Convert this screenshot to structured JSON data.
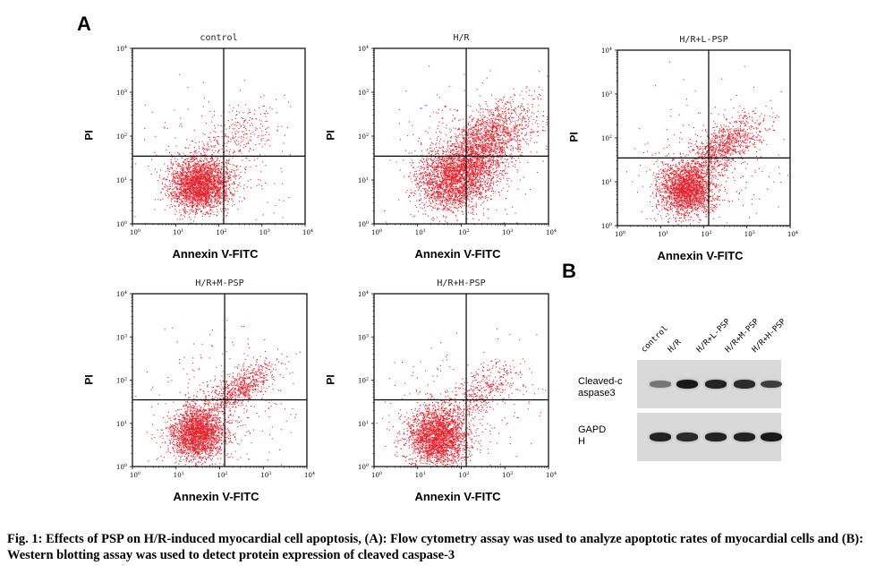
{
  "figure": {
    "panel_a_letter": "A",
    "panel_b_letter": "B",
    "caption": "Fig. 1: Effects of PSP on H/R-induced myocardial cell apoptosis, (A): Flow cytometry assay was used to analyze apoptotic rates of myocardial cells and (B): Western blotting assay was used to detect protein expression of cleaved caspase-3"
  },
  "chart_data": [
    {
      "type": "scatter",
      "title": "control",
      "xlabel": "Annexin V-FITC",
      "ylabel": "PI",
      "x_scale": "log",
      "y_scale": "log",
      "xlim": [
        1,
        10000
      ],
      "ylim": [
        1,
        10000
      ],
      "tick_labels": [
        "10",
        "10",
        "10",
        "10",
        "10"
      ],
      "tick_exponents": [
        "0",
        "1",
        "2",
        "3",
        "4"
      ],
      "quadrant_gate": {
        "x": 130,
        "y": 35
      },
      "point_color": "#e8202a",
      "populations": [
        {
          "label": "live",
          "center": [
            35,
            8
          ],
          "spread": [
            0.35,
            0.3
          ],
          "count": 2600
        },
        {
          "label": "late",
          "center": [
            250,
            90
          ],
          "spread": [
            0.3,
            0.3
          ],
          "count": 260
        },
        {
          "label": "background",
          "center": [
            100,
            30
          ],
          "spread": [
            0.9,
            0.8
          ],
          "count": 220
        }
      ]
    },
    {
      "type": "scatter",
      "title": "H/R",
      "xlabel": "Annexin V-FITC",
      "ylabel": "PI",
      "x_scale": "log",
      "y_scale": "log",
      "xlim": [
        1,
        10000
      ],
      "ylim": [
        1,
        10000
      ],
      "tick_labels": [
        "10",
        "10",
        "10",
        "10",
        "10"
      ],
      "tick_exponents": [
        "0",
        "1",
        "2",
        "3",
        "4"
      ],
      "quadrant_gate": {
        "x": 130,
        "y": 35
      },
      "point_color": "#e8202a",
      "populations": [
        {
          "label": "live",
          "center": [
            60,
            10
          ],
          "spread": [
            0.4,
            0.35
          ],
          "count": 2000
        },
        {
          "label": "late",
          "center": [
            400,
            90
          ],
          "spread": [
            0.35,
            0.3
          ],
          "count": 1500
        },
        {
          "label": "early",
          "center": [
            200,
            20
          ],
          "spread": [
            0.3,
            0.25
          ],
          "count": 500
        },
        {
          "label": "background",
          "center": [
            150,
            40
          ],
          "spread": [
            0.9,
            0.8
          ],
          "count": 300
        }
      ]
    },
    {
      "type": "scatter",
      "title": "H/R+L-PSP",
      "xlabel": "Annexin V-FITC",
      "ylabel": "PI",
      "x_scale": "log",
      "y_scale": "log",
      "xlim": [
        1,
        10000
      ],
      "ylim": [
        1,
        10000
      ],
      "tick_labels": [
        "10",
        "10",
        "10",
        "10",
        "10"
      ],
      "tick_exponents": [
        "0",
        "1",
        "2",
        "3",
        "4"
      ],
      "quadrant_gate": {
        "x": 130,
        "y": 35
      },
      "point_color": "#e8202a",
      "populations": [
        {
          "label": "live",
          "center": [
            40,
            7
          ],
          "spread": [
            0.32,
            0.3
          ],
          "count": 2200
        },
        {
          "label": "late",
          "center": [
            300,
            70
          ],
          "spread": [
            0.25,
            0.2
          ],
          "count": 900
        },
        {
          "label": "background",
          "center": [
            120,
            30
          ],
          "spread": [
            0.9,
            0.8
          ],
          "count": 250
        }
      ]
    },
    {
      "type": "scatter",
      "title": "H/R+M-PSP",
      "xlabel": "Annexin V-FITC",
      "ylabel": "PI",
      "x_scale": "log",
      "y_scale": "log",
      "xlim": [
        1,
        10000
      ],
      "ylim": [
        1,
        10000
      ],
      "tick_labels": [
        "10",
        "10",
        "10",
        "10",
        "10"
      ],
      "tick_exponents": [
        "0",
        "1",
        "2",
        "3",
        "4"
      ],
      "quadrant_gate": {
        "x": 130,
        "y": 35
      },
      "point_color": "#e8202a",
      "populations": [
        {
          "label": "live",
          "center": [
            30,
            6
          ],
          "spread": [
            0.3,
            0.3
          ],
          "count": 2300
        },
        {
          "label": "late",
          "center": [
            280,
            65
          ],
          "spread": [
            0.22,
            0.15
          ],
          "count": 700
        },
        {
          "label": "background",
          "center": [
            120,
            30
          ],
          "spread": [
            0.9,
            0.8
          ],
          "count": 250
        }
      ]
    },
    {
      "type": "scatter",
      "title": "H/R+H-PSP",
      "xlabel": "Annexin V-FITC",
      "ylabel": "PI",
      "x_scale": "log",
      "y_scale": "log",
      "xlim": [
        1,
        10000
      ],
      "ylim": [
        1,
        10000
      ],
      "tick_labels": [
        "10",
        "10",
        "10",
        "10",
        "10"
      ],
      "tick_exponents": [
        "0",
        "1",
        "2",
        "3",
        "4"
      ],
      "quadrant_gate": {
        "x": 130,
        "y": 35
      },
      "point_color": "#e8202a",
      "populations": [
        {
          "label": "live",
          "center": [
            28,
            5
          ],
          "spread": [
            0.35,
            0.35
          ],
          "count": 2500
        },
        {
          "label": "late",
          "center": [
            300,
            60
          ],
          "spread": [
            0.25,
            0.2
          ],
          "count": 350
        },
        {
          "label": "background",
          "center": [
            100,
            20
          ],
          "spread": [
            0.9,
            0.8
          ],
          "count": 230
        }
      ]
    }
  ],
  "western_blot": {
    "lanes": [
      "control",
      "H/R",
      "H/R+L-PSP",
      "H/R+M-PSP",
      "H/R+H-PSP"
    ],
    "rows": [
      {
        "label": "Cleaved-c aspase3",
        "intensities": [
          0.45,
          0.95,
          0.9,
          0.85,
          0.75
        ]
      },
      {
        "label": "GAPD H",
        "intensities": [
          0.9,
          0.85,
          0.9,
          0.9,
          0.95
        ]
      }
    ]
  }
}
